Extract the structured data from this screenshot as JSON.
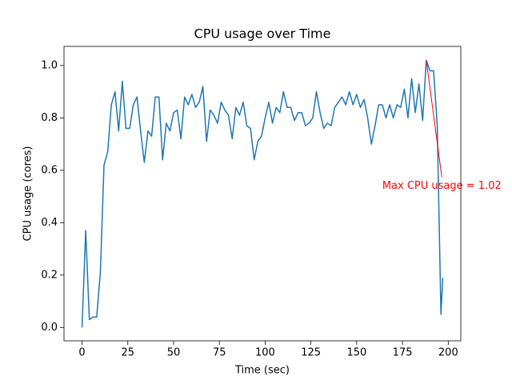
{
  "chart_data": {
    "type": "line",
    "title": "CPU usage over Time",
    "xlabel": "Time (sec)",
    "ylabel": "CPU usage (cores)",
    "x": [
      0,
      2,
      4,
      6,
      8,
      10,
      12,
      14,
      16,
      18,
      20,
      22,
      24,
      26,
      28,
      30,
      32,
      34,
      36,
      38,
      40,
      42,
      44,
      46,
      48,
      50,
      52,
      54,
      56,
      58,
      60,
      62,
      64,
      66,
      68,
      70,
      72,
      74,
      76,
      78,
      80,
      82,
      84,
      86,
      88,
      90,
      92,
      94,
      96,
      98,
      100,
      102,
      104,
      106,
      108,
      110,
      112,
      114,
      116,
      118,
      120,
      122,
      124,
      126,
      128,
      130,
      132,
      134,
      136,
      138,
      140,
      142,
      144,
      146,
      148,
      150,
      152,
      154,
      156,
      158,
      160,
      162,
      164,
      166,
      168,
      170,
      172,
      174,
      176,
      178,
      180,
      182,
      184,
      186,
      188,
      190,
      192,
      194,
      196,
      197
    ],
    "series": [
      {
        "name": "CPU usage",
        "color": "#1f77b4",
        "values": [
          0.0,
          0.37,
          0.03,
          0.04,
          0.04,
          0.21,
          0.62,
          0.67,
          0.85,
          0.9,
          0.75,
          0.94,
          0.76,
          0.76,
          0.85,
          0.88,
          0.75,
          0.63,
          0.75,
          0.73,
          0.88,
          0.88,
          0.64,
          0.78,
          0.75,
          0.82,
          0.83,
          0.72,
          0.88,
          0.85,
          0.89,
          0.84,
          0.86,
          0.92,
          0.71,
          0.83,
          0.81,
          0.78,
          0.86,
          0.83,
          0.81,
          0.72,
          0.84,
          0.81,
          0.86,
          0.77,
          0.76,
          0.64,
          0.71,
          0.73,
          0.8,
          0.86,
          0.78,
          0.84,
          0.82,
          0.9,
          0.84,
          0.84,
          0.79,
          0.82,
          0.82,
          0.77,
          0.78,
          0.8,
          0.9,
          0.82,
          0.76,
          0.78,
          0.77,
          0.84,
          0.86,
          0.88,
          0.85,
          0.9,
          0.85,
          0.89,
          0.84,
          0.87,
          0.8,
          0.7,
          0.77,
          0.85,
          0.85,
          0.8,
          0.85,
          0.8,
          0.85,
          0.84,
          0.91,
          0.8,
          0.95,
          0.82,
          0.93,
          0.79,
          1.02,
          0.98,
          0.98,
          0.77,
          0.05,
          0.19
        ]
      }
    ],
    "xlim": [
      -9.85,
      206.85
    ],
    "ylim": [
      -0.051,
      1.073
    ],
    "xticks": [
      0,
      25,
      50,
      75,
      100,
      125,
      150,
      175,
      200
    ],
    "yticks": [
      {
        "value": 0,
        "label": "0.0"
      },
      {
        "value": 0.2,
        "label": "0.2"
      },
      {
        "value": 0.4,
        "label": "0.4"
      },
      {
        "value": 0.6,
        "label": "0.6"
      },
      {
        "value": 0.8,
        "label": "0.8"
      },
      {
        "value": 1,
        "label": "1.0"
      }
    ],
    "annotation": {
      "text": "Max CPU usage = 1.02",
      "color": "red",
      "xy": [
        188,
        1.02
      ],
      "xytext": [
        196.5,
        0.54
      ]
    }
  }
}
